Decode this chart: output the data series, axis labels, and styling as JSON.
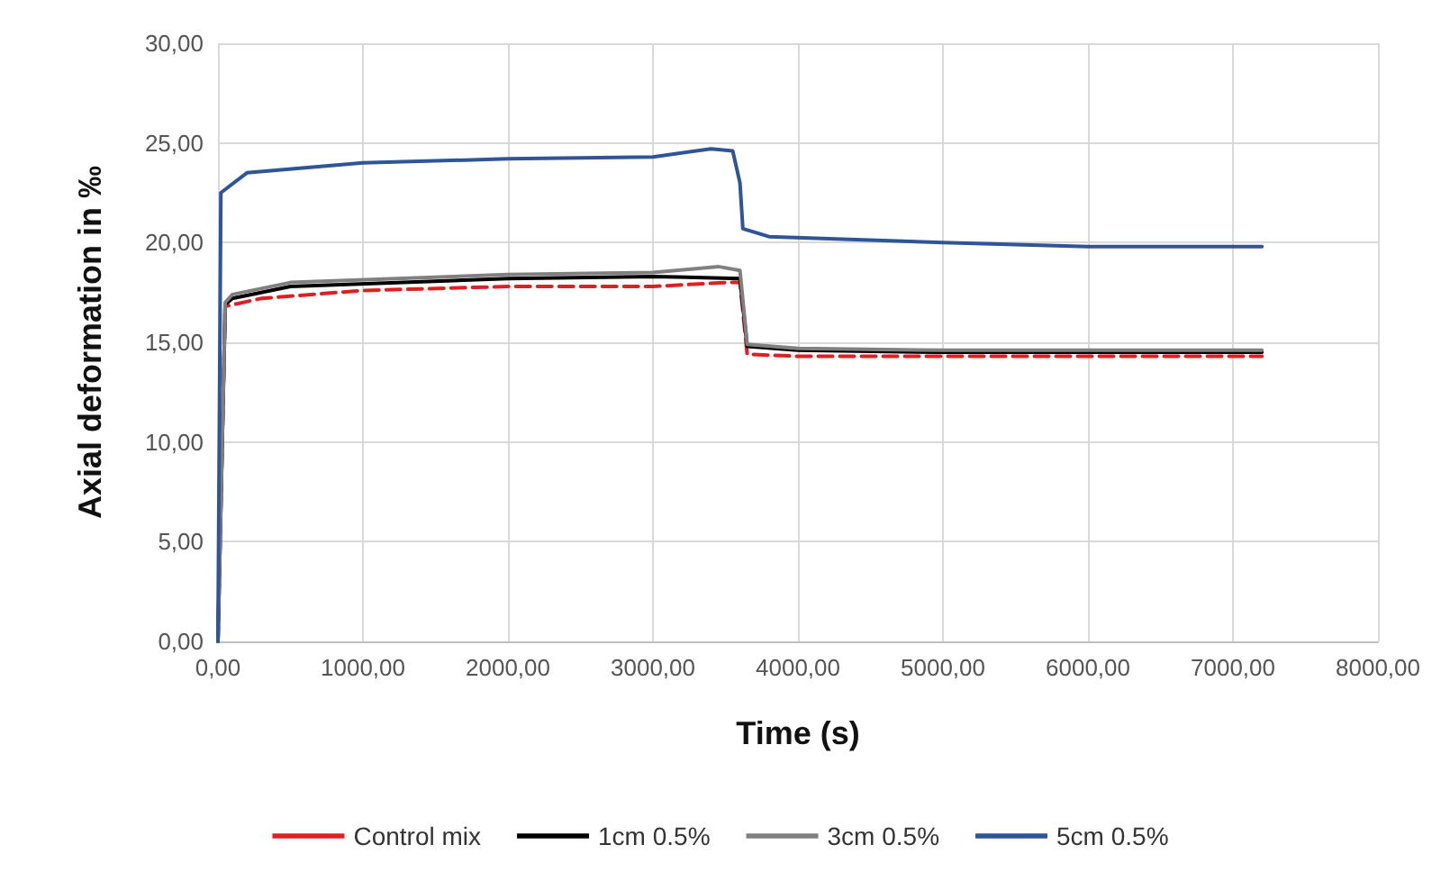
{
  "chart_data": {
    "type": "line",
    "xlabel": "Time (s)",
    "ylabel": "Axial deformation in ‰",
    "xlim": [
      0,
      8000
    ],
    "ylim": [
      0,
      30
    ],
    "xticks": [
      {
        "value": 0,
        "label": "0,00"
      },
      {
        "value": 1000,
        "label": "1000,00"
      },
      {
        "value": 2000,
        "label": "2000,00"
      },
      {
        "value": 3000,
        "label": "3000,00"
      },
      {
        "value": 4000,
        "label": "4000,00"
      },
      {
        "value": 5000,
        "label": "5000,00"
      },
      {
        "value": 6000,
        "label": "6000,00"
      },
      {
        "value": 7000,
        "label": "7000,00"
      },
      {
        "value": 8000,
        "label": "8000,00"
      }
    ],
    "yticks": [
      {
        "value": 0,
        "label": "0,00"
      },
      {
        "value": 5,
        "label": "5,00"
      },
      {
        "value": 10,
        "label": "10,00"
      },
      {
        "value": 15,
        "label": "15,00"
      },
      {
        "value": 20,
        "label": "20,00"
      },
      {
        "value": 25,
        "label": "25,00"
      },
      {
        "value": 30,
        "label": "30,00"
      }
    ],
    "grid": true,
    "legend": "bottom",
    "marker": "none",
    "series": [
      {
        "name": "Control mix",
        "color": "#e02020",
        "line_style": "dashed",
        "x": [
          0,
          50,
          300,
          1000,
          2000,
          3000,
          3500,
          3600,
          3650,
          4000,
          5000,
          7200
        ],
        "values": [
          0,
          16.8,
          17.2,
          17.6,
          17.8,
          17.8,
          18,
          18,
          14.4,
          14.3,
          14.3,
          14.3
        ]
      },
      {
        "name": "1cm 0.5%",
        "color": "#000000",
        "line_style": "solid",
        "x": [
          0,
          50,
          100,
          500,
          2000,
          3000,
          3600,
          3650,
          4000,
          5000,
          7200
        ],
        "values": [
          0,
          16.9,
          17.2,
          17.8,
          18.2,
          18.3,
          18.2,
          14.8,
          14.6,
          14.5,
          14.5
        ]
      },
      {
        "name": "3cm 0.5%",
        "color": "#808080",
        "line_style": "solid",
        "x": [
          0,
          50,
          100,
          500,
          2000,
          3000,
          3450,
          3600,
          3650,
          4000,
          5000,
          7200
        ],
        "values": [
          0,
          17,
          17.4,
          18,
          18.4,
          18.5,
          18.8,
          18.6,
          14.9,
          14.7,
          14.6,
          14.6
        ]
      },
      {
        "name": "5cm 0.5%",
        "color": "#2e5597",
        "line_style": "solid",
        "x": [
          0,
          20,
          200,
          1000,
          2000,
          3000,
          3400,
          3550,
          3600,
          3620,
          3800,
          5000,
          6000,
          7200
        ],
        "values": [
          0,
          22.5,
          23.5,
          24,
          24.2,
          24.3,
          24.7,
          24.6,
          23,
          20.7,
          20.3,
          20,
          19.8,
          19.8
        ]
      }
    ]
  }
}
